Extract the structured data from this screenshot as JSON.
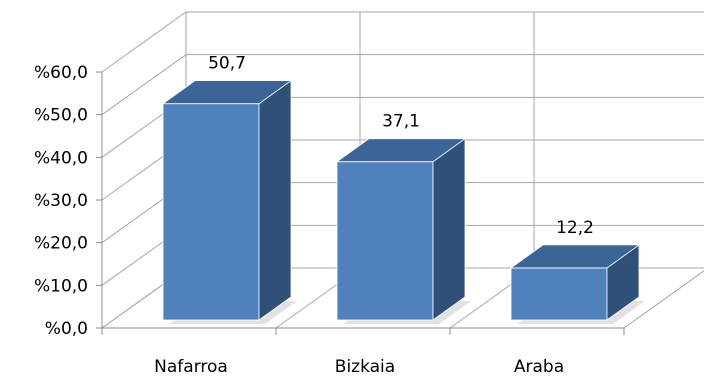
{
  "chart_data": {
    "type": "bar",
    "style": "3d-column",
    "categories": [
      "Nafarroa",
      "Bizkaia",
      "Araba"
    ],
    "values": [
      50.7,
      37.1,
      12.2
    ],
    "value_labels": [
      "50,7",
      "37,1",
      "12,2"
    ],
    "title": "",
    "xlabel": "",
    "ylabel": "",
    "ylim": [
      0,
      60
    ],
    "ytick_values": [
      0,
      10,
      20,
      30,
      40,
      50,
      60
    ],
    "ytick_labels": [
      "%0,0",
      "%10,0",
      "%20,0",
      "%30,0",
      "%40,0",
      "%50,0",
      "%60,0"
    ],
    "grid": true,
    "legend": "none",
    "colors": {
      "bar_front": "#4f81bd",
      "bar_top": "#3c6496",
      "bar_side": "#2f5078",
      "gridline": "#a6a6a6",
      "background": "#ffffff"
    }
  }
}
